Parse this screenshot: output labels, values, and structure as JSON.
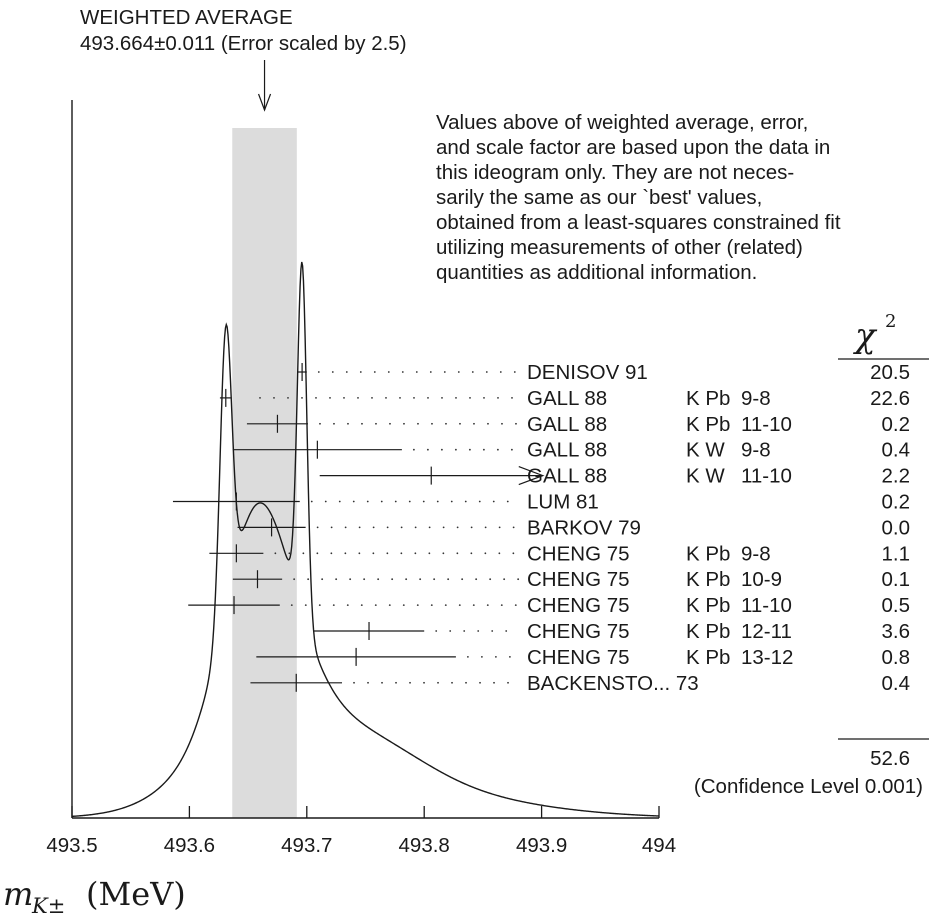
{
  "header": {
    "title": "WEIGHTED AVERAGE",
    "value_line": "493.664±0.011 (Error scaled by 2.5)"
  },
  "note_lines": [
    "Values above of weighted average, error,",
    "and scale factor are based upon the data in",
    "this ideogram only.  They are not neces-",
    "sarily the same as our `best' values,",
    "obtained from a least-squares constrained fit",
    "utilizing measurements of other (related)",
    "quantities as additional information."
  ],
  "chi2_header": "χ",
  "chi2_sup": "2",
  "chi2_total": "52.6",
  "confidence_label": "(Confidence Level  0.001)",
  "xlabel_main": "m",
  "xlabel_sub": "K±",
  "xlabel_unit": "(MeV)",
  "chart_data": {
    "type": "scatter",
    "title": "WEIGHTED AVERAGE",
    "xlim": [
      493.5,
      494.0
    ],
    "x_ticks": [
      "493.5",
      "493.6",
      "493.7",
      "493.8",
      "493.9",
      "494"
    ],
    "x_tick_values": [
      493.5,
      493.6,
      493.7,
      493.8,
      493.9,
      494.0
    ],
    "weighted_average": {
      "value": 493.664,
      "error": 0.011,
      "scale_factor": 2.5
    },
    "measurements": [
      {
        "author": "DENISOV 91",
        "tech": "",
        "trans": "",
        "chi2": "20.5",
        "value": 493.696,
        "lo": 493.692,
        "hi": 493.7,
        "arrow": false
      },
      {
        "author": "GALL 88",
        "tech": "K Pb",
        "trans": "9-8",
        "chi2": "22.6",
        "value": 493.631,
        "lo": 493.626,
        "hi": 493.636,
        "arrow": false
      },
      {
        "author": "GALL 88",
        "tech": "K Pb",
        "trans": "11-10",
        "chi2": "0.2",
        "value": 493.675,
        "lo": 493.649,
        "hi": 493.701,
        "arrow": false
      },
      {
        "author": "GALL 88",
        "tech": "K W",
        "trans": "9-8",
        "chi2": "0.4",
        "value": 493.709,
        "lo": 493.637,
        "hi": 493.781,
        "arrow": false
      },
      {
        "author": "GALL 88",
        "tech": "K W",
        "trans": "11-10",
        "chi2": "2.2",
        "value": 493.806,
        "lo": 493.711,
        "hi": 493.901,
        "arrow": true
      },
      {
        "author": "LUM 81",
        "tech": "",
        "trans": "",
        "chi2": "0.2",
        "value": 493.64,
        "lo": 493.586,
        "hi": 493.694,
        "arrow": false
      },
      {
        "author": "BARKOV 79",
        "tech": "",
        "trans": "",
        "chi2": "0.0",
        "value": 493.67,
        "lo": 493.641,
        "hi": 493.699,
        "arrow": false
      },
      {
        "author": "CHENG 75",
        "tech": "K Pb",
        "trans": "9-8",
        "chi2": "1.1",
        "value": 493.64,
        "lo": 493.617,
        "hi": 493.663,
        "arrow": false
      },
      {
        "author": "CHENG 75",
        "tech": "K Pb",
        "trans": "10-9",
        "chi2": "0.1",
        "value": 493.658,
        "lo": 493.637,
        "hi": 493.679,
        "arrow": false
      },
      {
        "author": "CHENG 75",
        "tech": "K Pb",
        "trans": "11-10",
        "chi2": "0.5",
        "value": 493.638,
        "lo": 493.599,
        "hi": 493.677,
        "arrow": false
      },
      {
        "author": "CHENG 75",
        "tech": "K Pb",
        "trans": "12-11",
        "chi2": "3.6",
        "value": 493.753,
        "lo": 493.706,
        "hi": 493.8,
        "arrow": false
      },
      {
        "author": "CHENG 75",
        "tech": "K Pb",
        "trans": "13-12",
        "chi2": "0.8",
        "value": 493.742,
        "lo": 493.657,
        "hi": 493.827,
        "arrow": false
      },
      {
        "author": "BACKENSTO... 73",
        "tech": "",
        "trans": "",
        "chi2": "0.4",
        "value": 493.691,
        "lo": 493.652,
        "hi": 493.73,
        "arrow": false
      }
    ]
  }
}
